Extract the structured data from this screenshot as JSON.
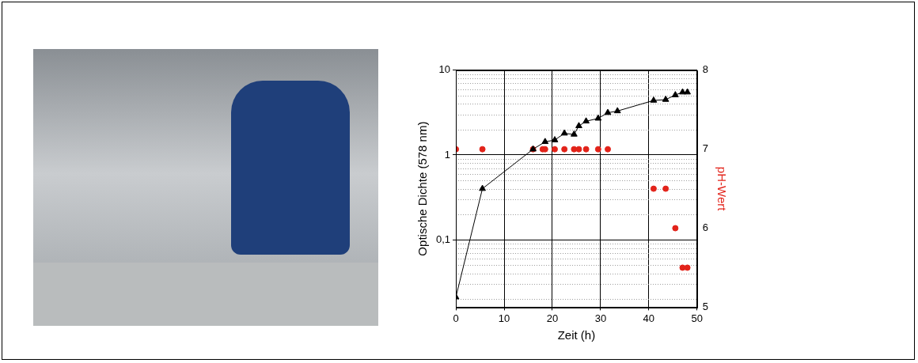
{
  "chart_data": {
    "type": "line",
    "x_label": "Zeit (h)",
    "y_label": "Optische Dichte (578 nm)",
    "y2_label": "pH-Wert",
    "y2_label_color": "#e2231a",
    "log": "y",
    "grid": true,
    "xlim": [
      0,
      50
    ],
    "xticks": [
      0,
      10,
      20,
      30,
      40,
      50
    ],
    "ylim": [
      0.016,
      10
    ],
    "yticks": [
      {
        "value": 0.1,
        "label": "0,1"
      },
      1,
      10
    ],
    "y2lim": [
      5,
      8
    ],
    "y2ticks": [
      5,
      6,
      7,
      8
    ],
    "series": [
      {
        "color": "#000000",
        "marker": "triangle",
        "line_style": "solid",
        "axis": "y",
        "x": [
          0,
          5.5,
          16,
          18.5,
          20.5,
          22.5,
          24.5,
          25.5,
          27,
          29.5,
          31.5,
          33.5,
          41,
          43.5,
          45.5,
          47,
          48
        ],
        "values": [
          0.021,
          0.4,
          1.17,
          1.43,
          1.5,
          1.8,
          1.75,
          2.2,
          2.5,
          2.7,
          3.15,
          3.3,
          4.4,
          4.5,
          5.1,
          5.5,
          5.5
        ]
      },
      {
        "color": "#e2231a",
        "marker": "circle",
        "line_style": "none",
        "axis": "y2",
        "x": [
          0,
          5.5,
          16,
          18,
          18.5,
          20.5,
          22.5,
          24.5,
          25.5,
          27,
          29.5,
          31.5,
          41,
          43.5,
          45.5,
          47,
          48
        ],
        "values": [
          7,
          7,
          7,
          7,
          7,
          7,
          7,
          7,
          7,
          7,
          7,
          7,
          6.5,
          6.5,
          6,
          5.5,
          5.5
        ]
      }
    ]
  }
}
